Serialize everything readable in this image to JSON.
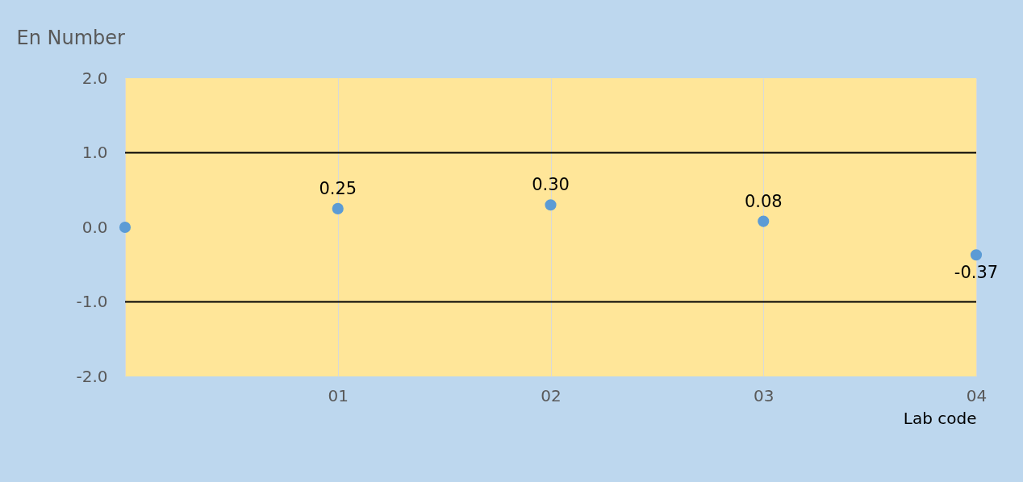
{
  "chart_data": {
    "type": "scatter",
    "xlabel": "Lab code",
    "ylabel": "En Number",
    "categories": [
      null,
      "01",
      "02",
      "03",
      "04"
    ],
    "series": [
      {
        "color": "#5b9bd5",
        "values": [
          0,
          0.25,
          0.3,
          0.08,
          -0.37
        ],
        "value_labels": [
          null,
          "0.25",
          "0.30",
          "0.08",
          "-0.37"
        ]
      }
    ],
    "ylim": [
      -2,
      2
    ],
    "yticks": [
      {
        "value": -2,
        "label": "-2.0"
      },
      {
        "value": -1,
        "label": "-1.0"
      },
      {
        "value": 0,
        "label": "0.0"
      },
      {
        "value": 1,
        "label": "1.0"
      },
      {
        "value": 2,
        "label": "2.0"
      }
    ],
    "ref_lines": [
      {
        "axis": "y",
        "value": 1,
        "color": "#000000"
      },
      {
        "axis": "y",
        "value": -1,
        "color": "#000000"
      }
    ],
    "grid": "x",
    "marker": "circle"
  }
}
